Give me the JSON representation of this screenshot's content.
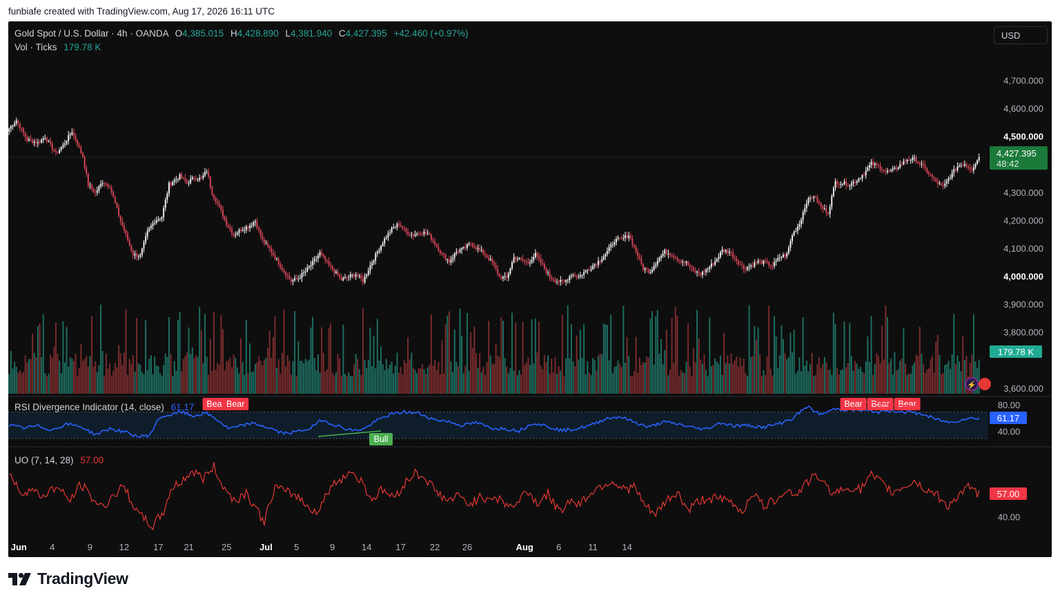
{
  "header": {
    "created_by": "funbiafe created with TradingView.com, Aug 17, 2026 16:11 UTC"
  },
  "legend": {
    "symbol": "Gold Spot / U.S. Dollar · 4h · OANDA",
    "open_label": "O",
    "open": "4,385.015",
    "high_label": "H",
    "high": "4,428.890",
    "low_label": "L",
    "low": "4,381.940",
    "close_label": "C",
    "close": "4,427.395",
    "change": "+42.460 (+0.97%)",
    "vol_label": "Vol · Ticks",
    "vol_value": "179.78 K",
    "rsi_label": "RSI Divergence Indicator (14, close)",
    "rsi_value": "61.17",
    "uo_label": "UO (7, 14, 28)",
    "uo_value": "57.00"
  },
  "currency_button": "USD",
  "price_badge": {
    "price": "4,427.395",
    "countdown": "48:42"
  },
  "volume_badge": "179.78 K",
  "rsi_badge": "61.17",
  "uo_badge": "57.00",
  "brand": "TradingView",
  "colors": {
    "background": "#0e0e0e",
    "up": "#ffffff",
    "down": "#e0485a",
    "vol_up": "#1d6e61",
    "vol_down": "#7a2c2d",
    "rsi_line": "#2962ff",
    "uo_line": "#e53935",
    "bear_label": "#f23645",
    "bull_label": "#4caf50",
    "price_badge": "#1b7a3a",
    "volume_badge": "#22ab94"
  },
  "chart_data": {
    "type": "candlestick",
    "timeframe": "4h",
    "y_axis_ticks": [
      "4,700.000",
      "4,600.000",
      "4,500.000",
      "4,300.000",
      "4,200.000",
      "4,100.000",
      "4,000.000",
      "3,900.000",
      "3,800.000",
      "3,600.000"
    ],
    "ylim": [
      3575,
      4790
    ],
    "x_axis_ticks": [
      "Jun",
      "4",
      "9",
      "12",
      "17",
      "21",
      "25",
      "Jul",
      "5",
      "9",
      "14",
      "17",
      "22",
      "26",
      "Aug",
      "6",
      "11",
      "14"
    ],
    "close_path": [
      [
        0,
        4530
      ],
      [
        4,
        4560
      ],
      [
        10,
        4490
      ],
      [
        16,
        4480
      ],
      [
        20,
        4500
      ],
      [
        26,
        4440
      ],
      [
        30,
        4470
      ],
      [
        35,
        4520
      ],
      [
        41,
        4430
      ],
      [
        44,
        4330
      ],
      [
        48,
        4300
      ],
      [
        52,
        4340
      ],
      [
        56,
        4325
      ],
      [
        62,
        4200
      ],
      [
        65,
        4150
      ],
      [
        69,
        4080
      ],
      [
        73,
        4075
      ],
      [
        77,
        4160
      ],
      [
        81,
        4200
      ],
      [
        85,
        4215
      ],
      [
        89,
        4330
      ],
      [
        95,
        4360
      ],
      [
        99,
        4335
      ],
      [
        103,
        4355
      ],
      [
        107,
        4350
      ],
      [
        110,
        4380
      ],
      [
        113,
        4300
      ],
      [
        117,
        4250
      ],
      [
        121,
        4190
      ],
      [
        125,
        4150
      ],
      [
        129,
        4170
      ],
      [
        133,
        4180
      ],
      [
        137,
        4200
      ],
      [
        141,
        4130
      ],
      [
        145,
        4100
      ],
      [
        149,
        4060
      ],
      [
        153,
        4020
      ],
      [
        157,
        3985
      ],
      [
        161,
        3995
      ],
      [
        165,
        4020
      ],
      [
        169,
        4050
      ],
      [
        173,
        4085
      ],
      [
        177,
        4050
      ],
      [
        181,
        4020
      ],
      [
        185,
        3990
      ],
      [
        189,
        4000
      ],
      [
        193,
        4010
      ],
      [
        197,
        3985
      ],
      [
        201,
        4040
      ],
      [
        205,
        4090
      ],
      [
        209,
        4135
      ],
      [
        213,
        4170
      ],
      [
        217,
        4190
      ],
      [
        221,
        4160
      ],
      [
        225,
        4150
      ],
      [
        229,
        4160
      ],
      [
        233,
        4155
      ],
      [
        237,
        4120
      ],
      [
        241,
        4080
      ],
      [
        245,
        4055
      ],
      [
        249,
        4090
      ],
      [
        253,
        4100
      ],
      [
        257,
        4120
      ],
      [
        261,
        4100
      ],
      [
        265,
        4080
      ],
      [
        269,
        4050
      ],
      [
        273,
        4000
      ],
      [
        277,
        3995
      ],
      [
        281,
        4070
      ],
      [
        285,
        4060
      ],
      [
        289,
        4050
      ],
      [
        293,
        4080
      ],
      [
        297,
        4040
      ],
      [
        301,
        4000
      ],
      [
        305,
        3985
      ],
      [
        309,
        3980
      ],
      [
        313,
        4010
      ],
      [
        317,
        4000
      ],
      [
        321,
        4020
      ],
      [
        325,
        4040
      ],
      [
        329,
        4060
      ],
      [
        333,
        4090
      ],
      [
        337,
        4130
      ],
      [
        341,
        4135
      ],
      [
        345,
        4150
      ],
      [
        349,
        4090
      ],
      [
        353,
        4030
      ],
      [
        357,
        4020
      ],
      [
        361,
        4060
      ],
      [
        365,
        4090
      ],
      [
        369,
        4080
      ],
      [
        373,
        4060
      ],
      [
        377,
        4050
      ],
      [
        381,
        4020
      ],
      [
        385,
        4010
      ],
      [
        389,
        4030
      ],
      [
        393,
        4055
      ],
      [
        397,
        4095
      ],
      [
        401,
        4090
      ],
      [
        405,
        4060
      ],
      [
        409,
        4030
      ],
      [
        413,
        4040
      ],
      [
        417,
        4055
      ],
      [
        421,
        4050
      ],
      [
        425,
        4040
      ],
      [
        429,
        4070
      ],
      [
        433,
        4080
      ],
      [
        436,
        4150
      ],
      [
        440,
        4190
      ],
      [
        444,
        4270
      ],
      [
        448,
        4290
      ],
      [
        452,
        4250
      ],
      [
        456,
        4230
      ],
      [
        460,
        4340
      ],
      [
        464,
        4335
      ],
      [
        468,
        4330
      ],
      [
        472,
        4345
      ],
      [
        476,
        4370
      ],
      [
        480,
        4405
      ],
      [
        484,
        4395
      ],
      [
        488,
        4375
      ],
      [
        492,
        4380
      ],
      [
        496,
        4400
      ],
      [
        500,
        4420
      ],
      [
        504,
        4420
      ],
      [
        508,
        4400
      ],
      [
        512,
        4370
      ],
      [
        516,
        4340
      ],
      [
        520,
        4320
      ],
      [
        524,
        4360
      ],
      [
        528,
        4395
      ],
      [
        532,
        4405
      ],
      [
        536,
        4385
      ],
      [
        540,
        4427
      ]
    ],
    "last_price": 4427.395,
    "rsi": {
      "ylim": [
        25,
        85
      ],
      "ticks": [
        "80.00",
        "40.00"
      ],
      "band": [
        30,
        70
      ],
      "values": [
        [
          0,
          50
        ],
        [
          8,
          46
        ],
        [
          16,
          49
        ],
        [
          24,
          43
        ],
        [
          32,
          52
        ],
        [
          40,
          48
        ],
        [
          48,
          36
        ],
        [
          56,
          45
        ],
        [
          64,
          40
        ],
        [
          72,
          33
        ],
        [
          78,
          35
        ],
        [
          84,
          62
        ],
        [
          90,
          66
        ],
        [
          96,
          70
        ],
        [
          102,
          64
        ],
        [
          110,
          68
        ],
        [
          116,
          58
        ],
        [
          122,
          45
        ],
        [
          128,
          48
        ],
        [
          134,
          53
        ],
        [
          140,
          50
        ],
        [
          146,
          45
        ],
        [
          152,
          38
        ],
        [
          160,
          40
        ],
        [
          168,
          46
        ],
        [
          174,
          58
        ],
        [
          180,
          52
        ],
        [
          186,
          46
        ],
        [
          192,
          42
        ],
        [
          198,
          45
        ],
        [
          204,
          56
        ],
        [
          212,
          66
        ],
        [
          220,
          70
        ],
        [
          228,
          68
        ],
        [
          236,
          59
        ],
        [
          244,
          56
        ],
        [
          252,
          50
        ],
        [
          260,
          54
        ],
        [
          268,
          46
        ],
        [
          276,
          45
        ],
        [
          284,
          42
        ],
        [
          292,
          54
        ],
        [
          300,
          48
        ],
        [
          308,
          42
        ],
        [
          316,
          45
        ],
        [
          324,
          50
        ],
        [
          332,
          60
        ],
        [
          340,
          63
        ],
        [
          348,
          55
        ],
        [
          356,
          47
        ],
        [
          364,
          55
        ],
        [
          372,
          52
        ],
        [
          380,
          47
        ],
        [
          388,
          44
        ],
        [
          396,
          54
        ],
        [
          404,
          49
        ],
        [
          412,
          50
        ],
        [
          420,
          47
        ],
        [
          428,
          52
        ],
        [
          436,
          60
        ],
        [
          444,
          78
        ],
        [
          452,
          66
        ],
        [
          460,
          75
        ],
        [
          468,
          73
        ],
        [
          476,
          72
        ],
        [
          484,
          70
        ],
        [
          492,
          72
        ],
        [
          500,
          70
        ],
        [
          508,
          67
        ],
        [
          516,
          59
        ],
        [
          524,
          54
        ],
        [
          532,
          60
        ],
        [
          540,
          61
        ]
      ],
      "value": 61.17
    },
    "uo": {
      "ylim": [
        30,
        85
      ],
      "ticks": [
        "40.00"
      ],
      "values": [
        [
          0,
          72
        ],
        [
          6,
          58
        ],
        [
          12,
          60
        ],
        [
          18,
          55
        ],
        [
          26,
          62
        ],
        [
          34,
          52
        ],
        [
          40,
          64
        ],
        [
          46,
          54
        ],
        [
          52,
          47
        ],
        [
          58,
          56
        ],
        [
          64,
          62
        ],
        [
          72,
          42
        ],
        [
          80,
          34
        ],
        [
          86,
          44
        ],
        [
          90,
          60
        ],
        [
          96,
          66
        ],
        [
          102,
          73
        ],
        [
          108,
          68
        ],
        [
          114,
          76
        ],
        [
          120,
          60
        ],
        [
          126,
          52
        ],
        [
          132,
          58
        ],
        [
          138,
          45
        ],
        [
          142,
          37
        ],
        [
          148,
          62
        ],
        [
          154,
          58
        ],
        [
          160,
          56
        ],
        [
          166,
          48
        ],
        [
          172,
          44
        ],
        [
          178,
          60
        ],
        [
          184,
          67
        ],
        [
          190,
          73
        ],
        [
          196,
          66
        ],
        [
          202,
          53
        ],
        [
          208,
          60
        ],
        [
          214,
          54
        ],
        [
          220,
          64
        ],
        [
          226,
          72
        ],
        [
          232,
          68
        ],
        [
          238,
          58
        ],
        [
          244,
          52
        ],
        [
          250,
          55
        ],
        [
          256,
          50
        ],
        [
          262,
          54
        ],
        [
          270,
          55
        ],
        [
          276,
          50
        ],
        [
          282,
          48
        ],
        [
          288,
          60
        ],
        [
          294,
          50
        ],
        [
          300,
          57
        ],
        [
          306,
          44
        ],
        [
          312,
          52
        ],
        [
          318,
          50
        ],
        [
          324,
          58
        ],
        [
          330,
          63
        ],
        [
          336,
          66
        ],
        [
          342,
          60
        ],
        [
          348,
          62
        ],
        [
          354,
          48
        ],
        [
          360,
          42
        ],
        [
          366,
          52
        ],
        [
          372,
          58
        ],
        [
          378,
          45
        ],
        [
          384,
          52
        ],
        [
          390,
          54
        ],
        [
          396,
          53
        ],
        [
          402,
          51
        ],
        [
          408,
          44
        ],
        [
          414,
          58
        ],
        [
          420,
          48
        ],
        [
          426,
          52
        ],
        [
          432,
          60
        ],
        [
          438,
          56
        ],
        [
          444,
          65
        ],
        [
          450,
          70
        ],
        [
          456,
          60
        ],
        [
          462,
          58
        ],
        [
          468,
          62
        ],
        [
          474,
          60
        ],
        [
          480,
          70
        ],
        [
          486,
          64
        ],
        [
          492,
          58
        ],
        [
          498,
          62
        ],
        [
          504,
          66
        ],
        [
          510,
          60
        ],
        [
          516,
          57
        ],
        [
          522,
          48
        ],
        [
          528,
          55
        ],
        [
          534,
          61
        ],
        [
          540,
          57
        ]
      ],
      "value": 57.0
    },
    "divergences": [
      {
        "type": "bear",
        "label": "Bear",
        "at": 115
      },
      {
        "type": "bear",
        "label": "Bear",
        "at": 126
      },
      {
        "type": "bull",
        "label": "Bull",
        "at": 207
      },
      {
        "type": "bear",
        "label": "Bear",
        "at": 470
      },
      {
        "type": "bear",
        "label": "Bear",
        "at": 485
      },
      {
        "type": "bear",
        "label": "Bear",
        "at": 500
      }
    ]
  }
}
